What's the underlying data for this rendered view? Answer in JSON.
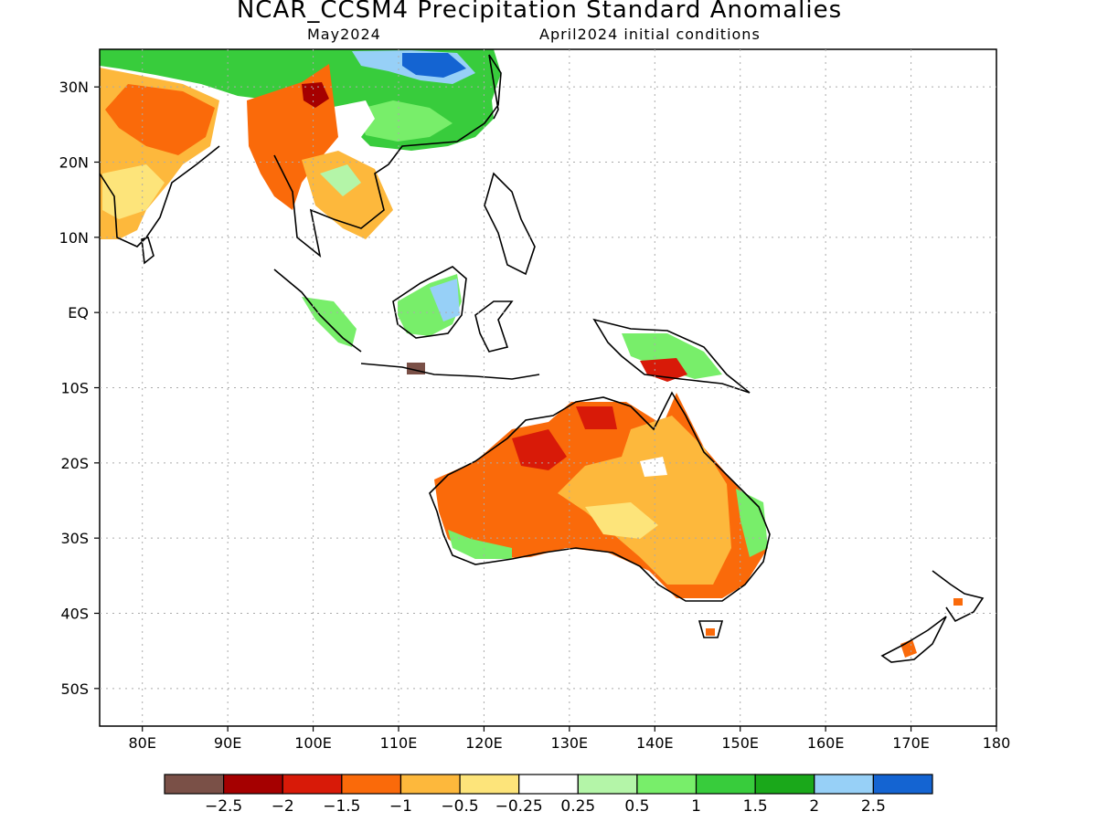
{
  "header": {
    "title": "NCAR_CCSM4 Precipitation Standard Anomalies",
    "target_month": "May2024",
    "initial_conditions": "April2024 initial conditions"
  },
  "map": {
    "lon_range": [
      75,
      180
    ],
    "lat_range": [
      -55,
      35
    ],
    "lon_ticks": [
      {
        "value": 80,
        "label": "80E"
      },
      {
        "value": 90,
        "label": "90E"
      },
      {
        "value": 100,
        "label": "100E"
      },
      {
        "value": 110,
        "label": "110E"
      },
      {
        "value": 120,
        "label": "120E"
      },
      {
        "value": 130,
        "label": "130E"
      },
      {
        "value": 140,
        "label": "140E"
      },
      {
        "value": 150,
        "label": "150E"
      },
      {
        "value": 160,
        "label": "160E"
      },
      {
        "value": 170,
        "label": "170E"
      },
      {
        "value": 180,
        "label": "180"
      }
    ],
    "lat_ticks": [
      {
        "value": 30,
        "label": "30N"
      },
      {
        "value": 20,
        "label": "20N"
      },
      {
        "value": 10,
        "label": "10N"
      },
      {
        "value": 0,
        "label": "EQ"
      },
      {
        "value": -10,
        "label": "10S"
      },
      {
        "value": -20,
        "label": "20S"
      },
      {
        "value": -30,
        "label": "30S"
      },
      {
        "value": -40,
        "label": "40S"
      },
      {
        "value": -50,
        "label": "50S"
      }
    ],
    "grid": true
  },
  "colorbar": {
    "colors": [
      "#7a5047",
      "#a50000",
      "#d81a08",
      "#fa6a0a",
      "#fdb83c",
      "#fde47a",
      "#ffffff",
      "#b4f5a8",
      "#78ee6a",
      "#38cc3c",
      "#1aa81a",
      "#97d0f7",
      "#1464d2"
    ],
    "labels": [
      "−2.5",
      "−2",
      "−1.5",
      "−1",
      "−0.5",
      "−0.25",
      "0.25",
      "0.5",
      "1",
      "1.5",
      "2",
      "2.5"
    ]
  }
}
